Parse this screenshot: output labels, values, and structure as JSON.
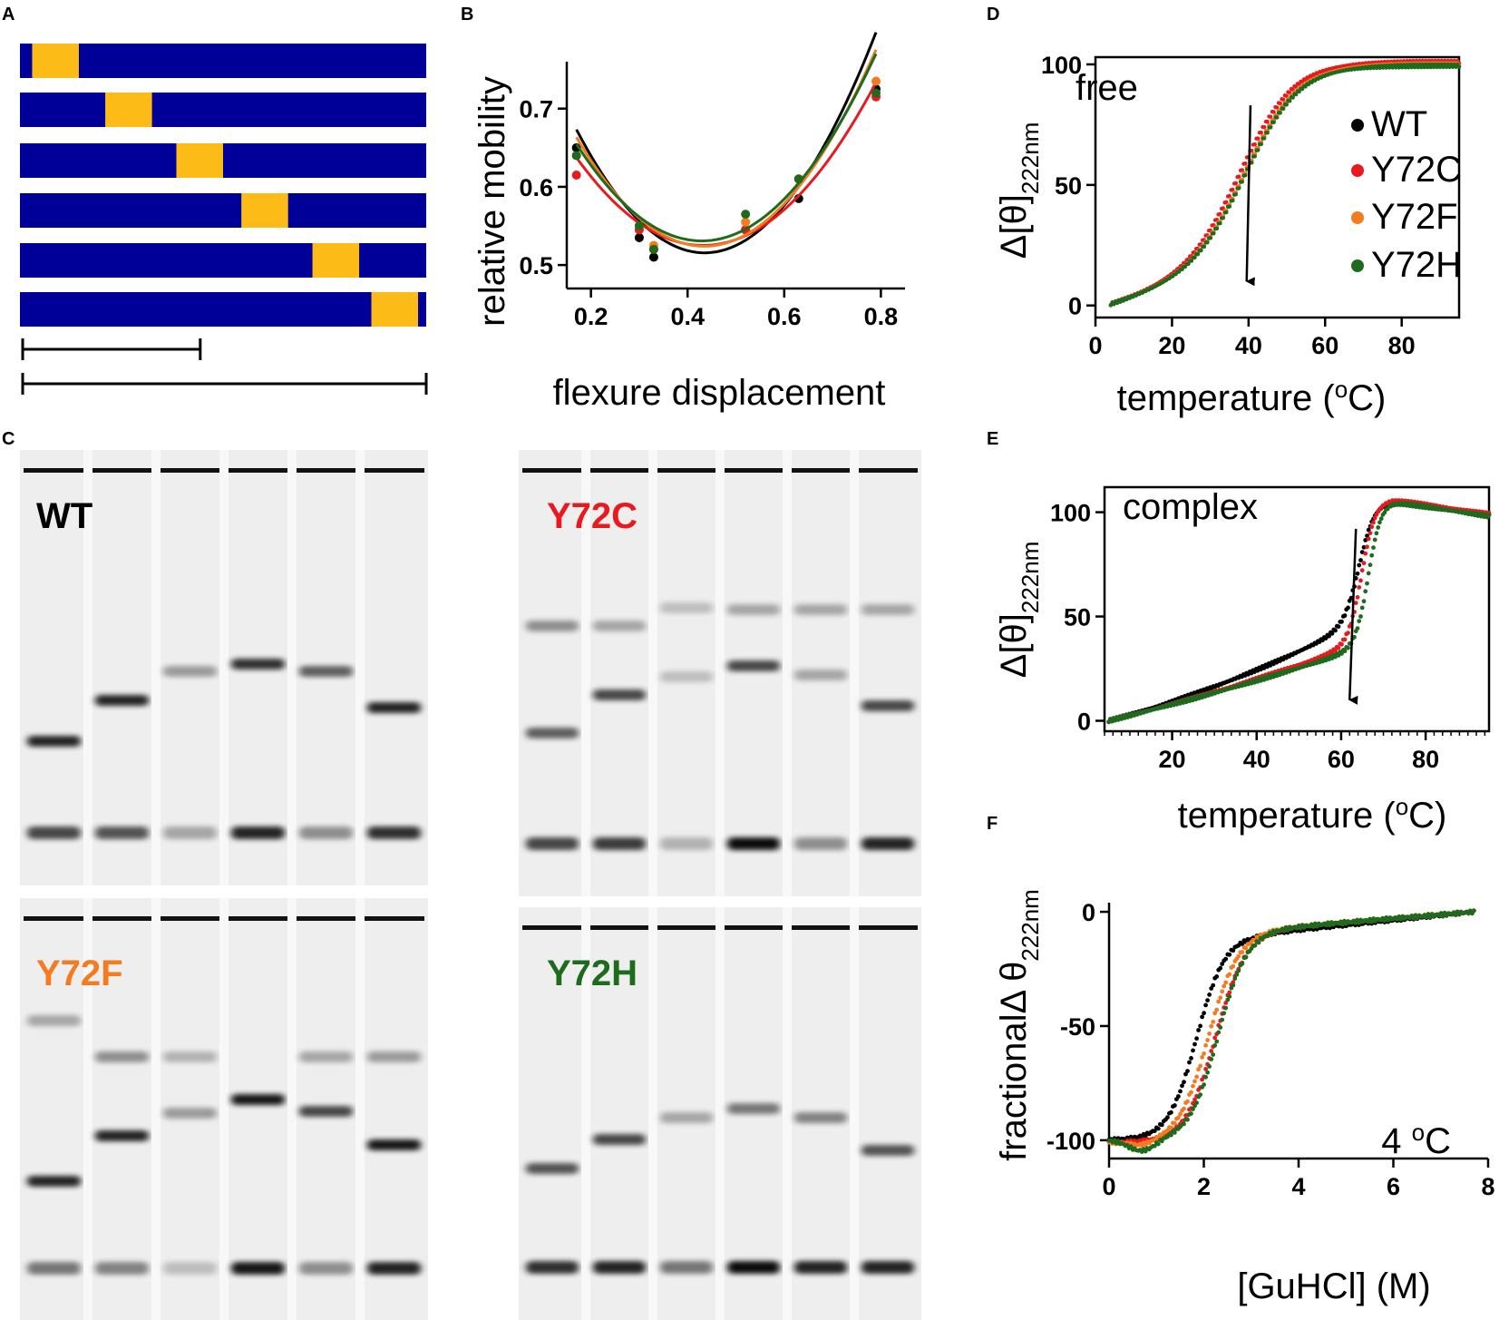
{
  "panel_labels": {
    "a": "A",
    "b": "B",
    "c": "C",
    "d": "D",
    "e": "E",
    "f": "F"
  },
  "colors": {
    "wt": "#000000",
    "y72c": "#e8191f",
    "y72f": "#f47b20",
    "y72h": "#1e6b1e",
    "bar": "#000099",
    "flexure": "#fdbb18"
  },
  "panel_a": {
    "bars": [
      {
        "yellow_start_fraction": 0.03,
        "yellow_width_fraction": 0.115
      },
      {
        "yellow_start_fraction": 0.21,
        "yellow_width_fraction": 0.115
      },
      {
        "yellow_start_fraction": 0.385,
        "yellow_width_fraction": 0.115
      },
      {
        "yellow_start_fraction": 0.545,
        "yellow_width_fraction": 0.115
      },
      {
        "yellow_start_fraction": 0.72,
        "yellow_width_fraction": 0.115
      },
      {
        "yellow_start_fraction": 0.865,
        "yellow_width_fraction": 0.115
      }
    ],
    "scale_fractions": [
      0.44,
      1.0
    ]
  },
  "gels": {
    "wt": {
      "label": "WT"
    },
    "y72c": {
      "label": "Y72C"
    },
    "y72f": {
      "label": "Y72F"
    },
    "y72h": {
      "label": "Y72H"
    }
  },
  "chart_data": [
    {
      "id": "B",
      "type": "scatter",
      "xlabel": "flexure displacement",
      "ylabel": "relative mobility",
      "xlim": [
        0.15,
        0.85
      ],
      "ylim": [
        0.47,
        0.76
      ],
      "xticks": [
        0.2,
        0.4,
        0.6,
        0.8
      ],
      "xtick_labels": [
        "0.2",
        "0.4",
        "0.6",
        "0.8"
      ],
      "yticks": [
        0.5,
        0.6,
        0.7
      ],
      "ytick_labels": [
        "0.5",
        "0.6",
        "0.7"
      ],
      "series": [
        {
          "name": "WT",
          "color_key": "wt",
          "x": [
            0.17,
            0.3,
            0.33,
            0.52,
            0.63,
            0.79
          ],
          "y": [
            0.65,
            0.535,
            0.51,
            0.545,
            0.585,
            0.725
          ],
          "fit": [
            2.24,
            -1.95,
            0.94
          ]
        },
        {
          "name": "Y72C",
          "color_key": "y72c",
          "x": [
            0.17,
            0.3,
            0.33,
            0.52,
            0.63,
            0.79
          ],
          "y": [
            0.615,
            0.545,
            0.52,
            0.545,
            0.61,
            0.715
          ],
          "fit": [
            1.63,
            -1.41,
            0.83
          ]
        },
        {
          "name": "Y72F",
          "color_key": "y72f",
          "x": [
            0.17,
            0.3,
            0.33,
            0.52,
            0.63,
            0.79
          ],
          "y": [
            0.64,
            0.55,
            0.525,
            0.555,
            0.61,
            0.735
          ],
          "fit": [
            1.99,
            -1.73,
            0.9
          ]
        },
        {
          "name": "Y72H",
          "color_key": "y72h",
          "x": [
            0.17,
            0.3,
            0.33,
            0.52,
            0.63,
            0.79
          ],
          "y": [
            0.64,
            0.55,
            0.52,
            0.565,
            0.61,
            0.72
          ],
          "fit": [
            1.84,
            -1.58,
            0.87
          ]
        }
      ]
    },
    {
      "id": "D",
      "type": "scatter",
      "annotation": "free",
      "xlabel": "temperature (°C)",
      "xlabel_main": "temperature (",
      "xlabel_sup": "o",
      "xlabel_end": "C)",
      "ylabel": "Δ[θ]222nm",
      "ylabel_main": "Δ[θ]",
      "ylabel_sub": "222nm",
      "xlim": [
        0,
        95
      ],
      "ylim": [
        -5,
        103
      ],
      "xticks": [
        0,
        20,
        40,
        60,
        80
      ],
      "xtick_labels": [
        "0",
        "20",
        "40",
        "60",
        "80"
      ],
      "yticks": [
        0,
        50,
        100
      ],
      "ytick_labels": [
        "0",
        "50",
        "100"
      ],
      "legend": [
        "WT",
        "Y72C",
        "Y72F",
        "Y72H"
      ],
      "arrow_from": [
        40.5,
        83
      ],
      "arrow_to": [
        39.5,
        10
      ],
      "series": [
        {
          "name": "WT",
          "color_key": "wt",
          "model": "sigmoid",
          "x0": 4,
          "x1": 95,
          "tm": 40,
          "width": 7,
          "base_slope": 0.45,
          "top": 100,
          "rise": 55
        },
        {
          "name": "Y72C",
          "color_key": "y72c",
          "model": "sigmoid",
          "x0": 4,
          "x1": 95,
          "tm": 38.8,
          "width": 7,
          "base_slope": 0.45,
          "top": 101,
          "rise": 55
        },
        {
          "name": "Y72F",
          "color_key": "y72f",
          "model": "sigmoid",
          "x0": 4,
          "x1": 95,
          "tm": 40,
          "width": 7,
          "base_slope": 0.45,
          "top": 100,
          "rise": 55
        },
        {
          "name": "Y72H",
          "color_key": "y72h",
          "model": "sigmoid",
          "x0": 4,
          "x1": 95,
          "tm": 40.2,
          "width": 7,
          "base_slope": 0.45,
          "top": 99.5,
          "rise": 55
        }
      ]
    },
    {
      "id": "E",
      "type": "scatter",
      "annotation": "complex",
      "xlabel": "temperature (°C)",
      "xlabel_main": "temperature (",
      "xlabel_sup": "o",
      "xlabel_end": "C)",
      "ylabel": "Δ[θ]222nm",
      "ylabel_main": "Δ[θ]",
      "ylabel_sub": "222nm",
      "xlim": [
        4,
        95
      ],
      "ylim": [
        -5,
        112
      ],
      "xticks": [
        20,
        40,
        60,
        80
      ],
      "xtick_labels": [
        "20",
        "40",
        "60",
        "80"
      ],
      "yticks": [
        0,
        50,
        100
      ],
      "ytick_labels": [
        "0",
        "50",
        "100"
      ],
      "arrow_from": [
        63.5,
        92
      ],
      "arrow_to": [
        62,
        10
      ],
      "series": [
        {
          "name": "WT",
          "color_key": "wt",
          "model": "complex",
          "x0": 5,
          "x1": 95,
          "base_slope": 0.55,
          "curv": 0.012,
          "tm": 64.5,
          "width": 1.8,
          "top": 105
        },
        {
          "name": "Y72C",
          "color_key": "y72c",
          "model": "complex",
          "x0": 5,
          "x1": 95,
          "base_slope": 0.5,
          "curv": 0.006,
          "tm": 65,
          "width": 1.6,
          "top": 106
        },
        {
          "name": "Y72H",
          "color_key": "y72h",
          "model": "complex",
          "x0": 5,
          "x1": 95,
          "base_slope": 0.5,
          "curv": 0.004,
          "tm": 66.5,
          "width": 1.5,
          "top": 105
        }
      ]
    },
    {
      "id": "F",
      "type": "scatter",
      "annotation": "4 °C",
      "annotation_main": "4 ",
      "annotation_sup": "o",
      "annotation_end": "C",
      "xlabel": "[GuHCl] (M)",
      "ylabel": "fractionalΔ θ222nm",
      "ylabel_main": "fractionalΔ θ",
      "ylabel_sub": "222nm",
      "xlim": [
        0,
        8
      ],
      "ylim": [
        -108,
        4
      ],
      "xticks": [
        0,
        2,
        4,
        6,
        8
      ],
      "xtick_labels": [
        "0",
        "2",
        "4",
        "6",
        "8"
      ],
      "yticks": [
        -100,
        -50,
        0
      ],
      "ytick_labels": [
        "-100",
        "-50",
        "0"
      ],
      "series": [
        {
          "name": "WT",
          "color_key": "wt",
          "model": "denat",
          "x0": 0,
          "x1": 7.7,
          "cm": 1.85,
          "width": 0.3,
          "lowbase": -100,
          "mid": -10,
          "dip": 0
        },
        {
          "name": "Y72C",
          "color_key": "y72c",
          "model": "denat",
          "x0": 0,
          "x1": 7.7,
          "cm": 2.25,
          "width": 0.32,
          "lowbase": -101,
          "mid": -8,
          "dip": 0
        },
        {
          "name": "Y72F",
          "color_key": "y72f",
          "model": "denat",
          "x0": 0,
          "x1": 7.7,
          "cm": 2.1,
          "width": 0.32,
          "lowbase": -101,
          "mid": -8,
          "dip": 2
        },
        {
          "name": "Y72H",
          "color_key": "y72h",
          "model": "denat",
          "x0": 0,
          "x1": 7.7,
          "cm": 2.3,
          "width": 0.3,
          "lowbase": -100,
          "mid": -8,
          "dip": 5
        }
      ]
    }
  ]
}
